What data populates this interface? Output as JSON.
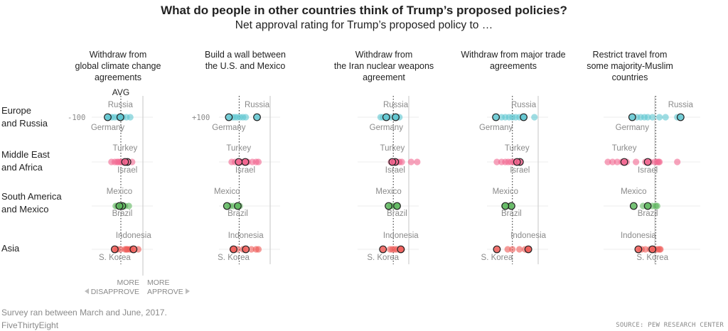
{
  "title": "What do people in other countries think of Trump’s proposed policies?",
  "subtitle": "Net approval rating for Trump’s proposed policy to …",
  "footnote": "Survey ran between March and June, 2017.",
  "credit": "FiveThirtyEight",
  "source": "SOURCE: PEW RESEARCH CENTER",
  "colors": {
    "Europe and Russia": "#5ec6d0",
    "Middle East and Africa": "#f2658f",
    "South America and Mexico": "#5fb85f",
    "Asia": "#ef5a56"
  },
  "annotations": {
    "avg_label": "AVG",
    "tick_neg": "-100",
    "tick_pos": "+100",
    "more_disapprove": [
      "MORE",
      "DISAPPROVE"
    ],
    "more_approve": [
      "MORE",
      "APPROVE"
    ]
  },
  "chart_data": {
    "type": "scatter",
    "description": "Strip plot of net approval rating by country; each dot is a country",
    "xlim": [
      -100,
      100
    ],
    "region_labels": [
      [
        "Europe",
        "and Russia"
      ],
      [
        "Middle East",
        "and Africa"
      ],
      [
        "South America",
        "and Mexico"
      ],
      [
        "Asia"
      ]
    ],
    "panels": [
      {
        "title": [
          "Withdraw from",
          "global climate change",
          "agreements"
        ],
        "avg": -47,
        "regions": [
          {
            "name": "Europe and Russia",
            "values": [
              -72,
              -66,
              -60,
              -53,
              -48,
              -43,
              -35,
              -27
            ],
            "highlighted": [
              {
                "label": "Germany",
                "value": -75
              },
              {
                "label": "Russia",
                "value": -48
              }
            ]
          },
          {
            "name": "Middle East and Africa",
            "values": [
              -67,
              -60,
              -55,
              -52,
              -48,
              -45,
              -42,
              -40,
              -37,
              -23
            ],
            "highlighted": [
              {
                "label": "Israel",
                "value": -33
              },
              {
                "label": "Turkey",
                "value": -38
              }
            ]
          },
          {
            "name": "South America and Mexico",
            "values": [
              -58,
              -54,
              -50,
              -46,
              -42,
              -38,
              -30
            ],
            "highlighted": [
              {
                "label": "Brazil",
                "value": -44
              },
              {
                "label": "Mexico",
                "value": -50
              }
            ]
          },
          {
            "name": "Asia",
            "values": [
              -55,
              -48,
              -38,
              -35,
              -33,
              -28,
              -25,
              -10
            ],
            "highlighted": [
              {
                "label": "S. Korea",
                "value": -60
              },
              {
                "label": "Indonesia",
                "value": -20
              }
            ]
          }
        ]
      },
      {
        "title": [
          "Build a wall between",
          "the U.S. and Mexico"
        ],
        "avg": -66,
        "regions": [
          {
            "name": "Europe and Russia",
            "values": [
              -80,
              -75,
              -70,
              -64,
              -58,
              -52
            ],
            "highlighted": [
              {
                "label": "Germany",
                "value": -88
              },
              {
                "label": "Russia",
                "value": -28
              }
            ]
          },
          {
            "name": "Middle East and Africa",
            "values": [
              -82,
              -75,
              -65,
              -60,
              -55,
              -50,
              -48,
              -38,
              -30,
              -25
            ],
            "highlighted": [
              {
                "label": "Israel",
                "value": -53
              },
              {
                "label": "Turkey",
                "value": -67
              }
            ]
          },
          {
            "name": "South America and Mexico",
            "values": [
              -85,
              -78,
              -70,
              -65
            ],
            "highlighted": [
              {
                "label": "Brazil",
                "value": -69
              },
              {
                "label": "Mexico",
                "value": -92
              }
            ]
          },
          {
            "name": "Asia",
            "values": [
              -80,
              -70,
              -58,
              -40,
              -30,
              -25
            ],
            "highlighted": [
              {
                "label": "S. Korea",
                "value": -78
              },
              {
                "label": "Indonesia",
                "value": -52
              }
            ]
          }
        ]
      },
      {
        "title": [
          "Withdraw from",
          "the Iran nuclear weapons",
          "agreement"
        ],
        "avg": -33,
        "regions": [
          {
            "name": "Europe and Russia",
            "values": [
              -60,
              -55,
              -45,
              -38,
              -30,
              -25,
              -20
            ],
            "highlighted": [
              {
                "label": "Germany",
                "value": -48
              },
              {
                "label": "Russia",
                "value": -28
              }
            ]
          },
          {
            "name": "Middle East and Africa",
            "values": [
              -38,
              -32,
              -25,
              -20,
              -15,
              5,
              18
            ],
            "highlighted": [
              {
                "label": "Israel",
                "value": -29
              },
              {
                "label": "Turkey",
                "value": -35
              }
            ]
          },
          {
            "name": "South America and Mexico",
            "values": [
              -38,
              -32,
              -25
            ],
            "highlighted": [
              {
                "label": "Brazil",
                "value": -25
              },
              {
                "label": "Mexico",
                "value": -43
              }
            ]
          },
          {
            "name": "Asia",
            "values": [
              -40,
              -35,
              -30,
              -25,
              -15
            ],
            "highlighted": [
              {
                "label": "S. Korea",
                "value": -55
              },
              {
                "label": "Indonesia",
                "value": -17
              }
            ]
          }
        ]
      },
      {
        "title": [
          "Withdraw from major trade",
          "agreements"
        ],
        "avg": -55,
        "regions": [
          {
            "name": "Europe and Russia",
            "values": [
              -78,
              -70,
              -62,
              -55,
              -48,
              -40,
              -30,
              -8
            ],
            "highlighted": [
              {
                "label": "Germany",
                "value": -90
              },
              {
                "label": "Russia",
                "value": -31
              }
            ]
          },
          {
            "name": "Middle East and Africa",
            "values": [
              -88,
              -78,
              -70,
              -64,
              -58,
              -52,
              -50
            ],
            "highlighted": [
              {
                "label": "Israel",
                "value": -39
              },
              {
                "label": "Turkey",
                "value": -45
              }
            ]
          },
          {
            "name": "South America and Mexico",
            "values": [
              -72,
              -62
            ],
            "highlighted": [
              {
                "label": "Brazil",
                "value": -57
              },
              {
                "label": "Mexico",
                "value": -70
              }
            ]
          },
          {
            "name": "Asia",
            "values": [
              -65,
              -55,
              -40,
              -28,
              -20
            ],
            "highlighted": [
              {
                "label": "S. Korea",
                "value": -88
              },
              {
                "label": "Indonesia",
                "value": -21
              }
            ]
          }
        ]
      },
      {
        "title": [
          "Restrict travel from",
          "some majority-Muslim",
          "countries"
        ],
        "avg": 2,
        "regions": [
          {
            "name": "Europe and Russia",
            "values": [
              -38,
              -30,
              -22,
              -15,
              -5,
              10,
              23,
              48
            ],
            "highlighted": [
              {
                "label": "Germany",
                "value": -48
              },
              {
                "label": "Russia",
                "value": 55
              }
            ]
          },
          {
            "name": "Middle East and Africa",
            "values": [
              -100,
              -90,
              -80,
              -70,
              -60,
              -40,
              -20,
              -10,
              0,
              5,
              8,
              10,
              48
            ],
            "highlighted": [
              {
                "label": "Israel",
                "value": -15
              },
              {
                "label": "Turkey",
                "value": -65
              }
            ]
          },
          {
            "name": "South America and Mexico",
            "values": [
              -25,
              -15,
              -5,
              2,
              5
            ],
            "highlighted": [
              {
                "label": "Brazil",
                "value": -15
              },
              {
                "label": "Mexico",
                "value": -45
              }
            ]
          },
          {
            "name": "Asia",
            "values": [
              -28,
              -20,
              -10,
              0,
              6,
              10,
              12
            ],
            "highlighted": [
              {
                "label": "S. Korea",
                "value": -5
              },
              {
                "label": "Indonesia",
                "value": -35
              }
            ]
          }
        ]
      }
    ]
  }
}
